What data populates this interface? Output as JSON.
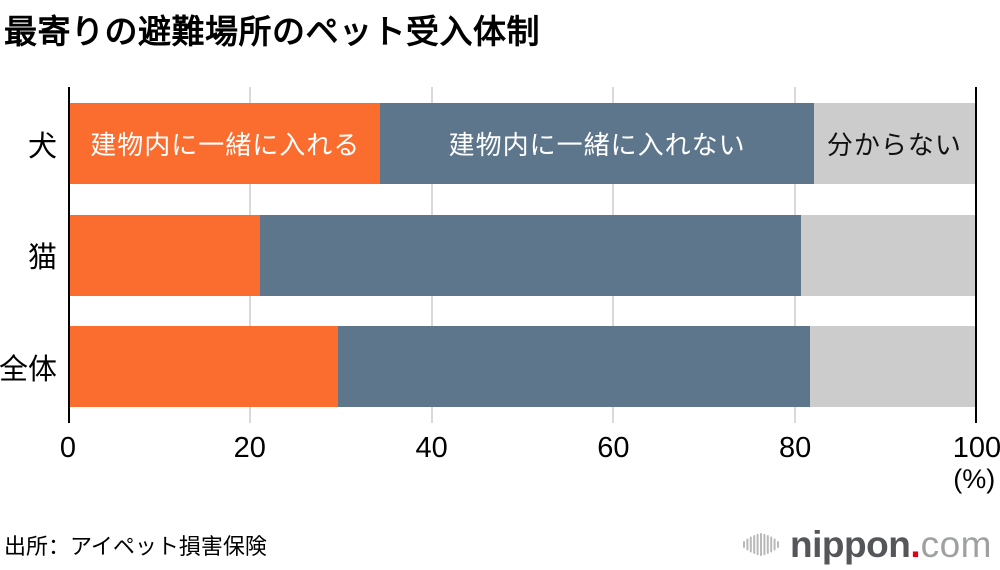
{
  "chart_data": {
    "type": "bar",
    "orientation": "horizontal-stacked",
    "title": "最寄りの避難場所のペット受入体制",
    "categories": [
      "犬",
      "猫",
      "全体"
    ],
    "series": [
      {
        "name": "建物内に一緒に入れる",
        "color": "#fb6c2f",
        "label_color": "#ffffff",
        "values": [
          34.3,
          21.0,
          29.6
        ]
      },
      {
        "name": "建物内に一緒に入れない",
        "color": "#5e768c",
        "label_color": "#ffffff",
        "values": [
          47.9,
          59.8,
          52.2
        ]
      },
      {
        "name": "分からない",
        "color": "#cccccc",
        "label_color": "#111111",
        "values": [
          17.8,
          19.2,
          18.2
        ]
      }
    ],
    "xlim": [
      0,
      100
    ],
    "xticks": [
      0,
      20,
      40,
      60,
      80,
      100
    ],
    "unit": "(%)",
    "grid": true,
    "legend_position": "inside-first-bar",
    "series_labels_row": 0
  },
  "source": {
    "text": "出所：アイペット損害保険"
  },
  "logo": {
    "brand": "nippon",
    "dot": ".",
    "tld": "com",
    "mark": "nippon-com-soundwave-mark",
    "mark_color": "#b9b9b9"
  },
  "colors": {
    "background": "#ffffff",
    "gridline": "#d9d9d9",
    "axis": "#000000",
    "title_text": "#000000"
  }
}
